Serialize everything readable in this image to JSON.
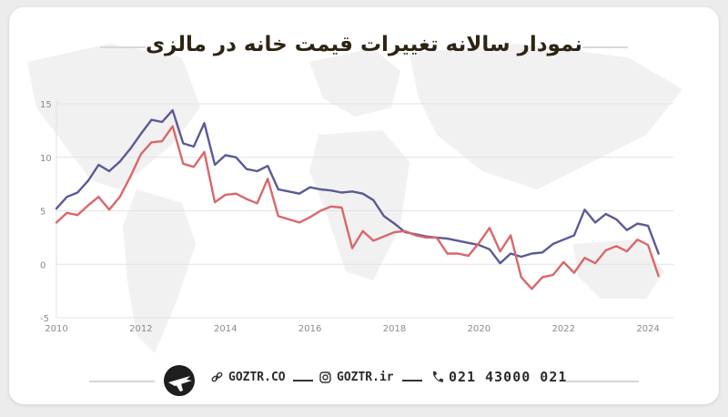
{
  "title": "نمودار سالانه تغییرات قیمت خانه در مالزی",
  "footer": {
    "website": "GOZTR.CO",
    "instagram": "GOZTR.ir",
    "phone": "021 43000 021",
    "icons": [
      "logo-airplane-icon",
      "link-icon",
      "instagram-icon",
      "phone-icon"
    ]
  },
  "colors": {
    "series1": "#5a5a96",
    "series2": "#d9676a",
    "grid": "#e3e3e3"
  },
  "chart_data": {
    "type": "line",
    "xlabel": "",
    "ylabel": "",
    "xlim": [
      2010,
      2024.6
    ],
    "ylim": [
      -5,
      15
    ],
    "xticks": [
      2010,
      2012,
      2014,
      2016,
      2018,
      2020,
      2022,
      2024
    ],
    "yticks": [
      -5,
      0,
      5,
      10,
      15
    ],
    "grid": true,
    "series": [
      {
        "points": [
          [
            2010.0,
            5.2
          ],
          [
            2010.25,
            6.3
          ],
          [
            2010.5,
            6.7
          ],
          [
            2010.75,
            7.8
          ],
          [
            2011.0,
            9.3
          ],
          [
            2011.25,
            8.7
          ],
          [
            2011.5,
            9.6
          ],
          [
            2011.75,
            10.8
          ],
          [
            2012.0,
            12.2
          ],
          [
            2012.25,
            13.5
          ],
          [
            2012.5,
            13.3
          ],
          [
            2012.75,
            14.4
          ],
          [
            2013.0,
            11.3
          ],
          [
            2013.25,
            11.0
          ],
          [
            2013.5,
            13.2
          ],
          [
            2013.75,
            9.3
          ],
          [
            2014.0,
            10.2
          ],
          [
            2014.25,
            10.0
          ],
          [
            2014.5,
            8.9
          ],
          [
            2014.75,
            8.7
          ],
          [
            2015.0,
            9.2
          ],
          [
            2015.25,
            7.0
          ],
          [
            2015.5,
            6.8
          ],
          [
            2015.75,
            6.6
          ],
          [
            2016.0,
            7.2
          ],
          [
            2016.25,
            7.0
          ],
          [
            2016.5,
            6.9
          ],
          [
            2016.75,
            6.7
          ],
          [
            2017.0,
            6.8
          ],
          [
            2017.25,
            6.6
          ],
          [
            2017.5,
            6.0
          ],
          [
            2017.75,
            4.5
          ],
          [
            2018.0,
            3.8
          ],
          [
            2018.25,
            3.0
          ],
          [
            2018.5,
            2.8
          ],
          [
            2018.75,
            2.6
          ],
          [
            2019.0,
            2.5
          ],
          [
            2019.25,
            2.4
          ],
          [
            2019.5,
            2.2
          ],
          [
            2019.75,
            2.0
          ],
          [
            2020.0,
            1.8
          ],
          [
            2020.25,
            1.4
          ],
          [
            2020.5,
            0.1
          ],
          [
            2020.75,
            1.0
          ],
          [
            2021.0,
            0.7
          ],
          [
            2021.25,
            1.0
          ],
          [
            2021.5,
            1.1
          ],
          [
            2021.75,
            1.9
          ],
          [
            2022.0,
            2.3
          ],
          [
            2022.25,
            2.7
          ],
          [
            2022.5,
            5.1
          ],
          [
            2022.75,
            3.9
          ],
          [
            2023.0,
            4.7
          ],
          [
            2023.25,
            4.2
          ],
          [
            2023.5,
            3.2
          ],
          [
            2023.75,
            3.8
          ],
          [
            2024.0,
            3.6
          ],
          [
            2024.25,
            1.0
          ]
        ]
      },
      {
        "points": [
          [
            2010.0,
            3.9
          ],
          [
            2010.25,
            4.8
          ],
          [
            2010.5,
            4.6
          ],
          [
            2010.75,
            5.5
          ],
          [
            2011.0,
            6.3
          ],
          [
            2011.25,
            5.1
          ],
          [
            2011.5,
            6.3
          ],
          [
            2011.75,
            8.2
          ],
          [
            2012.0,
            10.3
          ],
          [
            2012.25,
            11.4
          ],
          [
            2012.5,
            11.5
          ],
          [
            2012.75,
            12.9
          ],
          [
            2013.0,
            9.4
          ],
          [
            2013.25,
            9.1
          ],
          [
            2013.5,
            10.5
          ],
          [
            2013.75,
            5.8
          ],
          [
            2014.0,
            6.5
          ],
          [
            2014.25,
            6.6
          ],
          [
            2014.5,
            6.1
          ],
          [
            2014.75,
            5.7
          ],
          [
            2015.0,
            8.0
          ],
          [
            2015.25,
            4.5
          ],
          [
            2015.5,
            4.2
          ],
          [
            2015.75,
            3.9
          ],
          [
            2016.0,
            4.4
          ],
          [
            2016.25,
            5.0
          ],
          [
            2016.5,
            5.4
          ],
          [
            2016.75,
            5.3
          ],
          [
            2017.0,
            1.5
          ],
          [
            2017.25,
            3.1
          ],
          [
            2017.5,
            2.2
          ],
          [
            2017.75,
            2.6
          ],
          [
            2018.0,
            3.0
          ],
          [
            2018.25,
            3.1
          ],
          [
            2018.5,
            2.7
          ],
          [
            2018.75,
            2.5
          ],
          [
            2019.0,
            2.5
          ],
          [
            2019.25,
            1.0
          ],
          [
            2019.5,
            1.0
          ],
          [
            2019.75,
            0.8
          ],
          [
            2020.0,
            2.0
          ],
          [
            2020.25,
            3.4
          ],
          [
            2020.5,
            1.2
          ],
          [
            2020.75,
            2.7
          ],
          [
            2021.0,
            -1.2
          ],
          [
            2021.25,
            -2.3
          ],
          [
            2021.5,
            -1.2
          ],
          [
            2021.75,
            -1.0
          ],
          [
            2022.0,
            0.2
          ],
          [
            2022.25,
            -0.8
          ],
          [
            2022.5,
            0.6
          ],
          [
            2022.75,
            0.1
          ],
          [
            2023.0,
            1.3
          ],
          [
            2023.25,
            1.7
          ],
          [
            2023.5,
            1.2
          ],
          [
            2023.75,
            2.3
          ],
          [
            2024.0,
            1.8
          ],
          [
            2024.25,
            -1.1
          ]
        ]
      }
    ]
  }
}
